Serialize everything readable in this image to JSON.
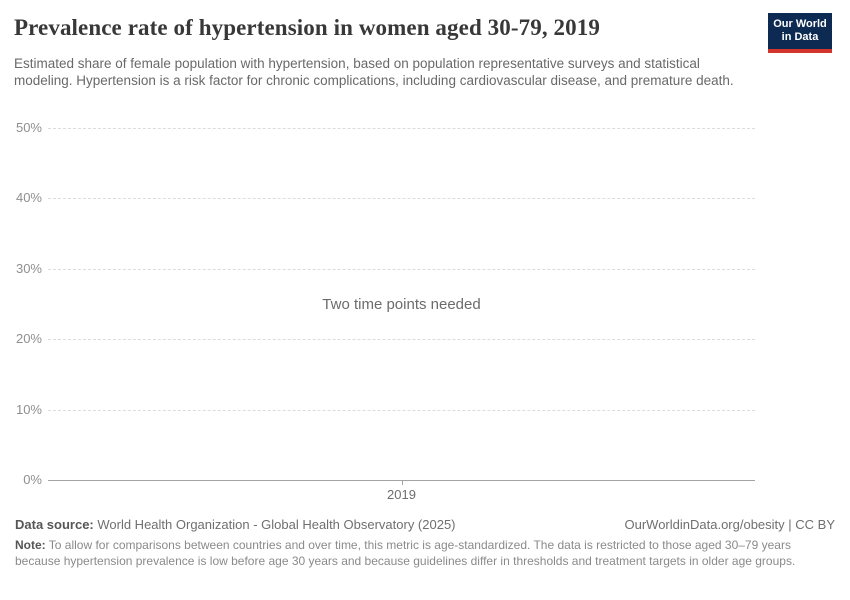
{
  "header": {
    "title": "Prevalence rate of hypertension in women aged 30-79, 2019",
    "subtitle": "Estimated share of female population with hypertension, based on population representative surveys and statistical modeling. Hypertension is a risk factor for chronic complications, including cardiovascular disease, and premature death.",
    "logo": {
      "line1": "Our World",
      "line2": "in Data",
      "bg_color": "#0d2b52",
      "accent_color": "#d1352c"
    }
  },
  "chart_data": {
    "type": "line",
    "title": "Prevalence rate of hypertension in women aged 30-79, 2019",
    "xlabel": "",
    "ylabel": "",
    "ylim": [
      0,
      50
    ],
    "y_ticks": [
      {
        "label": "0%",
        "value": 0
      },
      {
        "label": "10%",
        "value": 10
      },
      {
        "label": "20%",
        "value": 20
      },
      {
        "label": "30%",
        "value": 30
      },
      {
        "label": "40%",
        "value": 40
      },
      {
        "label": "50%",
        "value": 50
      }
    ],
    "x_ticks": [
      {
        "label": "2019"
      }
    ],
    "series": [],
    "grid": "horizontal-dashed",
    "legend": "none",
    "empty_state_message": "Two time points needed",
    "colors": {
      "gridline": "#dcdcdc",
      "axis_line": "#a3a3a3",
      "tick_label": "#8f8f8f"
    }
  },
  "footer": {
    "data_source_label": "Data source:",
    "data_source_value": " World Health Organization - Global Health Observatory (2025)",
    "citation": "OurWorldinData.org/obesity | CC BY",
    "note_label": "Note:",
    "note_text": " To allow for comparisons between countries and over time, this metric is age-standardized. The data is restricted to those aged 30–79 years because hypertension prevalence is low before age 30 years and because guidelines differ in thresholds and treatment targets in older age groups."
  }
}
